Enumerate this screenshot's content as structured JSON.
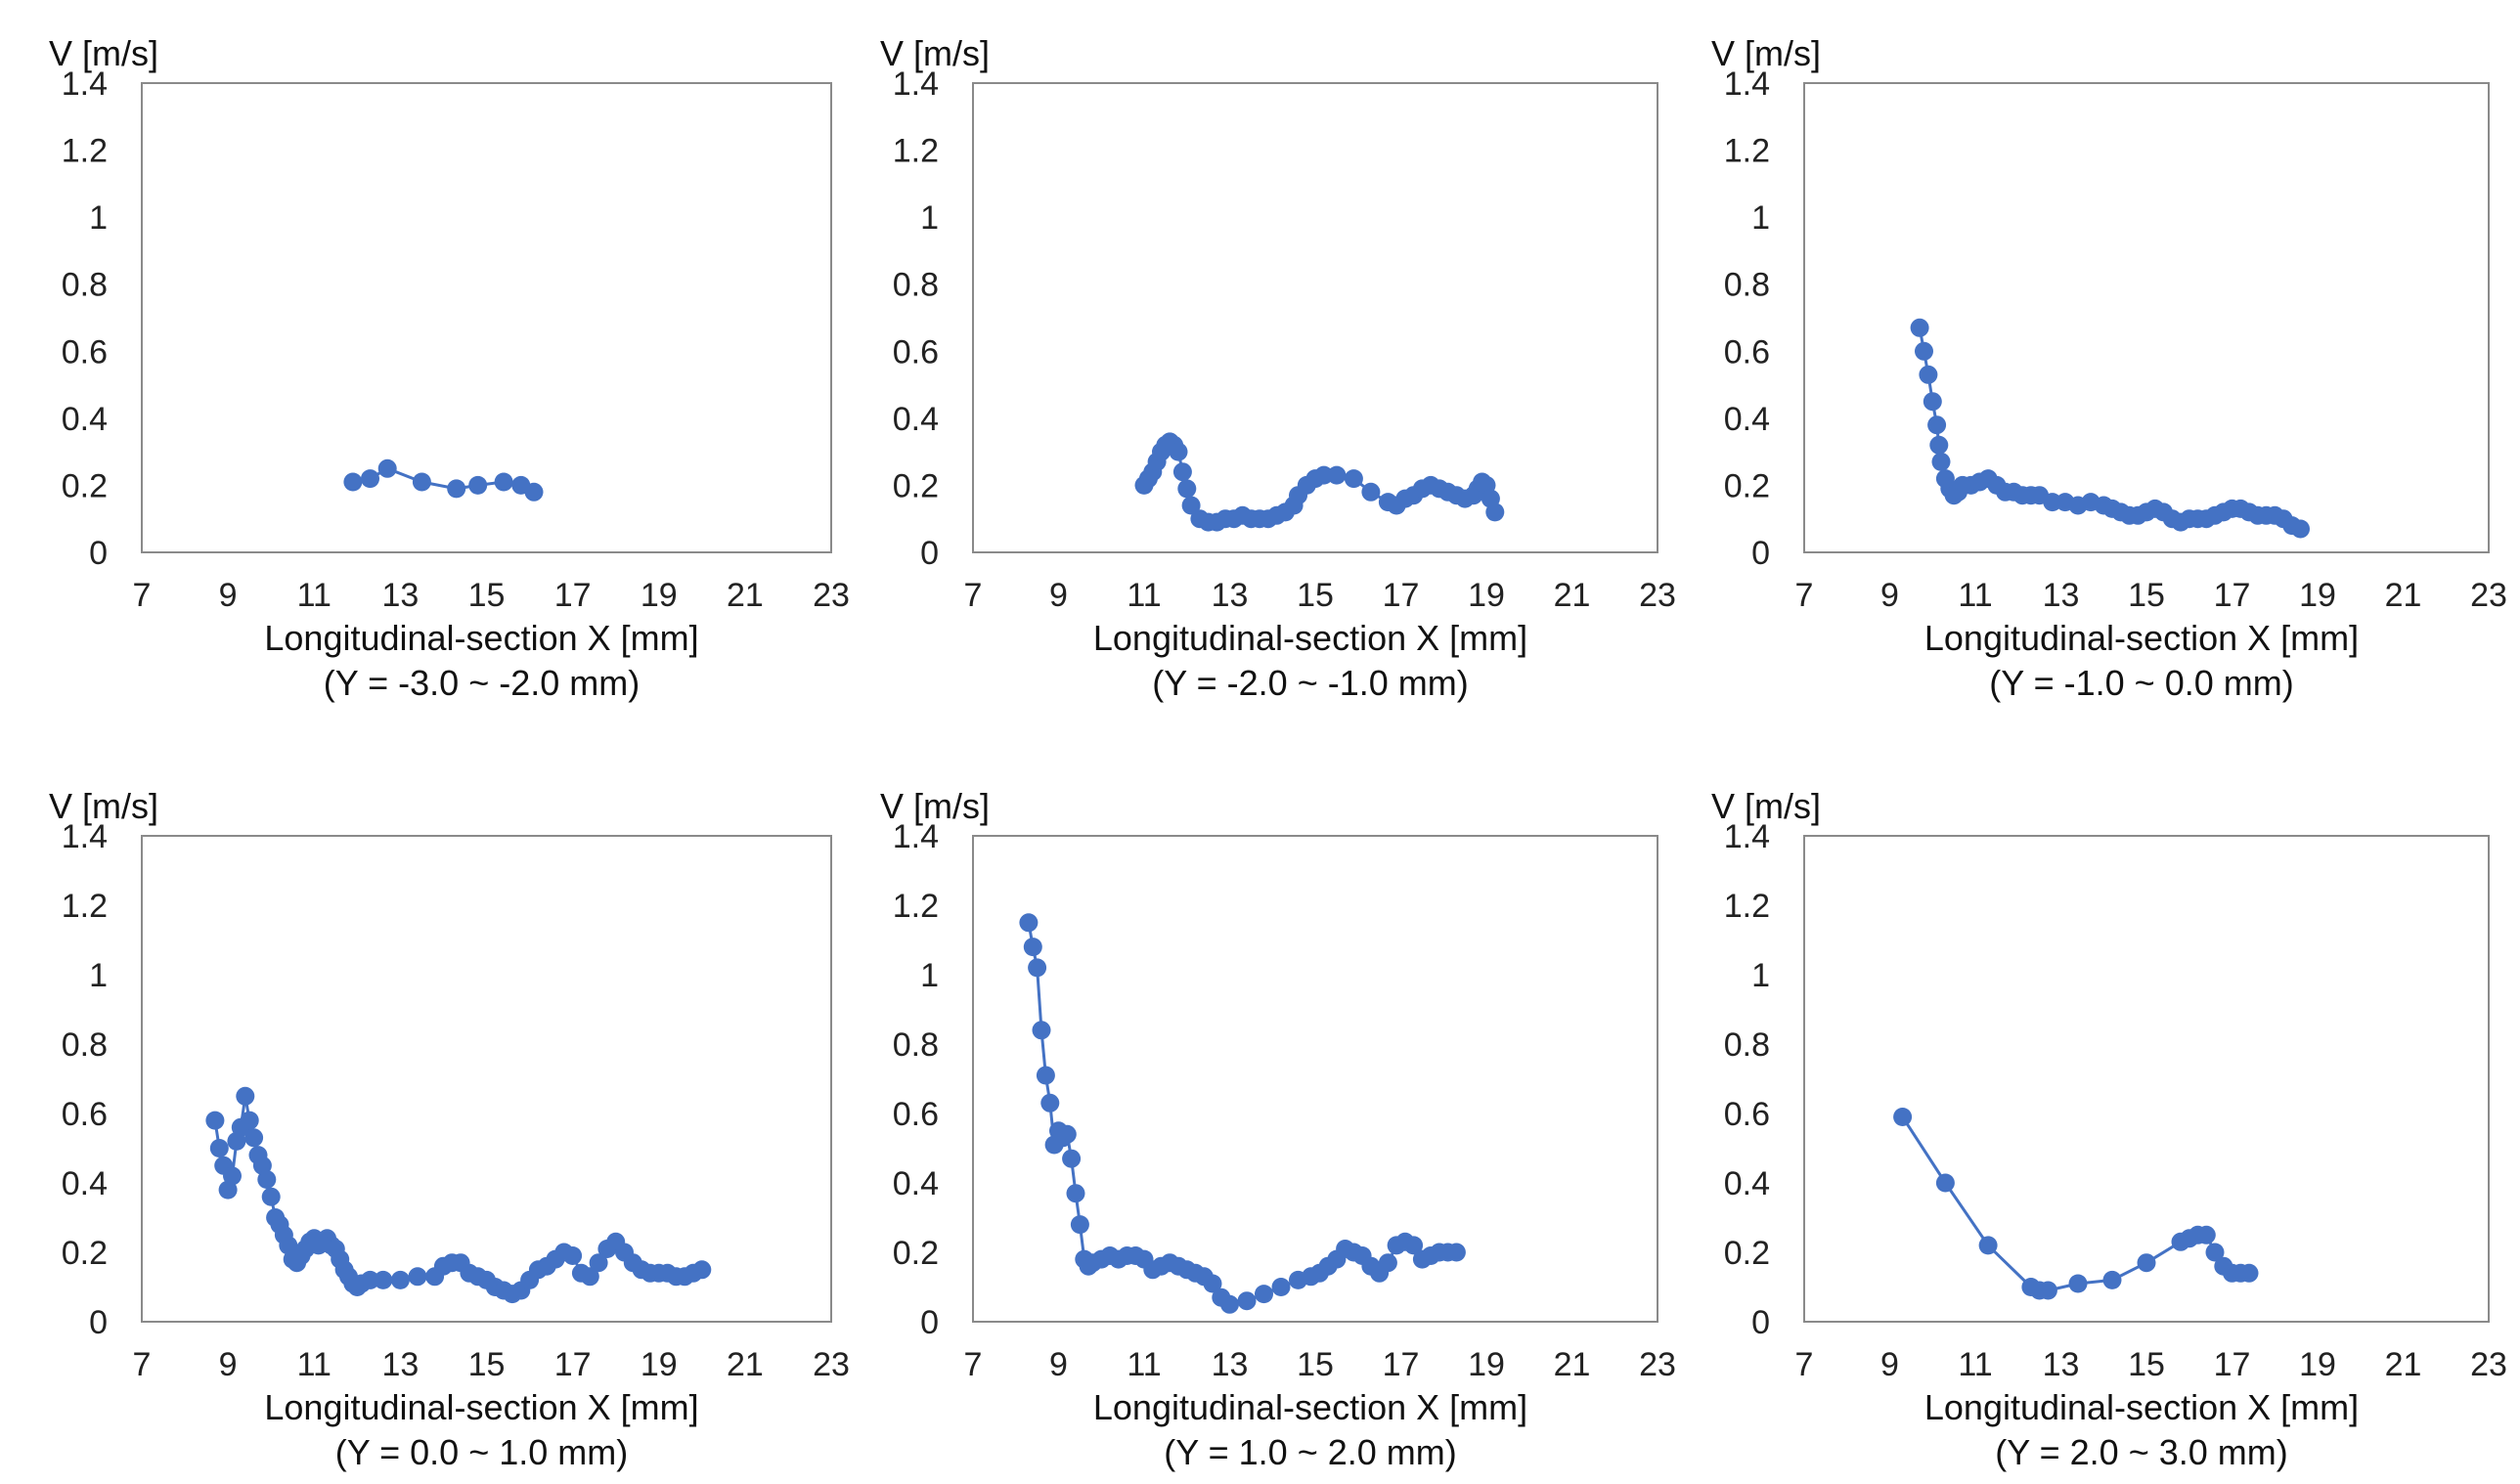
{
  "chart_data": [
    {
      "type": "line",
      "title": "",
      "xlabel": "Longitudinal-section X [mm]",
      "subtitle": "(Y = -3.0 ~ -2.0 mm)",
      "ylabel": "V [m/s]",
      "xlim": [
        7,
        23
      ],
      "ylim": [
        0,
        1.4
      ],
      "xticks": [
        "7",
        "9",
        "11",
        "13",
        "15",
        "17",
        "19",
        "21",
        "23"
      ],
      "yticks": [
        "0",
        "0.2",
        "0.4",
        "0.6",
        "0.8",
        "1",
        "1.2",
        "1.4"
      ],
      "grid": false,
      "series_color": "#4472C4",
      "series": [
        {
          "name": "V",
          "x": [
            11.9,
            12.3,
            12.7,
            13.5,
            14.3,
            14.8,
            15.4,
            15.8,
            16.1
          ],
          "y": [
            0.21,
            0.22,
            0.25,
            0.21,
            0.19,
            0.2,
            0.21,
            0.2,
            0.18
          ]
        }
      ]
    },
    {
      "type": "line",
      "title": "",
      "xlabel": "Longitudinal-section X [mm]",
      "subtitle": "(Y = -2.0 ~ -1.0 mm)",
      "ylabel": "V [m/s]",
      "xlim": [
        7,
        23
      ],
      "ylim": [
        0,
        1.4
      ],
      "xticks": [
        "7",
        "9",
        "11",
        "13",
        "15",
        "17",
        "19",
        "21",
        "23"
      ],
      "yticks": [
        "0",
        "0.2",
        "0.4",
        "0.6",
        "0.8",
        "1",
        "1.2",
        "1.4"
      ],
      "grid": false,
      "series_color": "#4472C4",
      "series": [
        {
          "name": "V",
          "x": [
            11.0,
            11.1,
            11.2,
            11.3,
            11.4,
            11.5,
            11.6,
            11.7,
            11.8,
            11.9,
            12.0,
            12.1,
            12.3,
            12.5,
            12.7,
            12.9,
            13.1,
            13.3,
            13.5,
            13.7,
            13.9,
            14.1,
            14.3,
            14.5,
            14.6,
            14.8,
            15.0,
            15.2,
            15.5,
            15.9,
            16.3,
            16.7,
            16.9,
            17.1,
            17.3,
            17.5,
            17.7,
            17.9,
            18.1,
            18.3,
            18.5,
            18.7,
            18.8,
            18.9,
            19.0,
            19.1,
            19.2
          ],
          "y": [
            0.2,
            0.22,
            0.24,
            0.27,
            0.3,
            0.32,
            0.33,
            0.32,
            0.3,
            0.24,
            0.19,
            0.14,
            0.1,
            0.09,
            0.09,
            0.1,
            0.1,
            0.11,
            0.1,
            0.1,
            0.1,
            0.11,
            0.12,
            0.14,
            0.17,
            0.2,
            0.22,
            0.23,
            0.23,
            0.22,
            0.18,
            0.15,
            0.14,
            0.16,
            0.17,
            0.19,
            0.2,
            0.19,
            0.18,
            0.17,
            0.16,
            0.17,
            0.19,
            0.21,
            0.2,
            0.16,
            0.12
          ]
        }
      ]
    },
    {
      "type": "line",
      "title": "",
      "xlabel": "Longitudinal-section X [mm]",
      "subtitle": "(Y = -1.0 ~ 0.0 mm)",
      "ylabel": "V [m/s]",
      "xlim": [
        7,
        23
      ],
      "ylim": [
        0,
        1.4
      ],
      "xticks": [
        "7",
        "9",
        "11",
        "13",
        "15",
        "17",
        "19",
        "21",
        "23"
      ],
      "yticks": [
        "0",
        "0.2",
        "0.4",
        "0.6",
        "0.8",
        "1",
        "1.2",
        "1.4"
      ],
      "grid": false,
      "series_color": "#4472C4",
      "series": [
        {
          "name": "V",
          "x": [
            9.7,
            9.8,
            9.9,
            10.0,
            10.1,
            10.15,
            10.2,
            10.3,
            10.4,
            10.5,
            10.6,
            10.7,
            10.9,
            11.1,
            11.3,
            11.5,
            11.7,
            11.9,
            12.1,
            12.3,
            12.5,
            12.8,
            13.1,
            13.4,
            13.7,
            14.0,
            14.2,
            14.4,
            14.6,
            14.8,
            15.0,
            15.2,
            15.4,
            15.6,
            15.8,
            16.0,
            16.2,
            16.4,
            16.6,
            16.8,
            17.0,
            17.2,
            17.4,
            17.6,
            17.8,
            18.0,
            18.2,
            18.4,
            18.6
          ],
          "y": [
            0.67,
            0.6,
            0.53,
            0.45,
            0.38,
            0.32,
            0.27,
            0.22,
            0.19,
            0.17,
            0.18,
            0.2,
            0.2,
            0.21,
            0.22,
            0.2,
            0.18,
            0.18,
            0.17,
            0.17,
            0.17,
            0.15,
            0.15,
            0.14,
            0.15,
            0.14,
            0.13,
            0.12,
            0.11,
            0.11,
            0.12,
            0.13,
            0.12,
            0.1,
            0.09,
            0.1,
            0.1,
            0.1,
            0.11,
            0.12,
            0.13,
            0.13,
            0.12,
            0.11,
            0.11,
            0.11,
            0.1,
            0.08,
            0.07
          ]
        }
      ]
    },
    {
      "type": "line",
      "title": "",
      "xlabel": "Longitudinal-section X [mm]",
      "subtitle": "(Y = 0.0 ~ 1.0 mm)",
      "ylabel": "V [m/s]",
      "xlim": [
        7,
        23
      ],
      "ylim": [
        0,
        1.4
      ],
      "xticks": [
        "7",
        "9",
        "11",
        "13",
        "15",
        "17",
        "19",
        "21",
        "23"
      ],
      "yticks": [
        "0",
        "0.2",
        "0.4",
        "0.6",
        "0.8",
        "1",
        "1.2",
        "1.4"
      ],
      "grid": false,
      "series_color": "#4472C4",
      "series": [
        {
          "name": "V",
          "x": [
            8.7,
            8.8,
            8.9,
            9.0,
            9.1,
            9.2,
            9.3,
            9.4,
            9.5,
            9.6,
            9.7,
            9.8,
            9.9,
            10.0,
            10.1,
            10.2,
            10.3,
            10.4,
            10.5,
            10.6,
            10.7,
            10.8,
            10.9,
            11.0,
            11.1,
            11.2,
            11.3,
            11.4,
            11.5,
            11.6,
            11.7,
            11.8,
            11.9,
            12.0,
            12.1,
            12.3,
            12.6,
            13.0,
            13.4,
            13.8,
            14.0,
            14.2,
            14.4,
            14.6,
            14.8,
            15.0,
            15.2,
            15.4,
            15.6,
            15.8,
            16.0,
            16.2,
            16.4,
            16.6,
            16.8,
            17.0,
            17.2,
            17.4,
            17.6,
            17.8,
            18.0,
            18.2,
            18.4,
            18.6,
            18.8,
            19.0,
            19.2,
            19.4,
            19.6,
            19.8,
            20.0
          ],
          "y": [
            0.58,
            0.5,
            0.45,
            0.38,
            0.42,
            0.52,
            0.56,
            0.65,
            0.58,
            0.53,
            0.48,
            0.45,
            0.41,
            0.36,
            0.3,
            0.28,
            0.25,
            0.22,
            0.18,
            0.17,
            0.19,
            0.21,
            0.23,
            0.24,
            0.22,
            0.23,
            0.24,
            0.22,
            0.21,
            0.18,
            0.15,
            0.13,
            0.11,
            0.1,
            0.11,
            0.12,
            0.12,
            0.12,
            0.13,
            0.13,
            0.16,
            0.17,
            0.17,
            0.14,
            0.13,
            0.12,
            0.1,
            0.09,
            0.08,
            0.09,
            0.12,
            0.15,
            0.16,
            0.18,
            0.2,
            0.19,
            0.14,
            0.13,
            0.17,
            0.21,
            0.23,
            0.2,
            0.17,
            0.15,
            0.14,
            0.14,
            0.14,
            0.13,
            0.13,
            0.14,
            0.15
          ]
        }
      ]
    },
    {
      "type": "line",
      "title": "",
      "xlabel": "Longitudinal-section X [mm]",
      "subtitle": "(Y = 1.0 ~ 2.0 mm)",
      "ylabel": "V [m/s]",
      "xlim": [
        7,
        23
      ],
      "ylim": [
        0,
        1.4
      ],
      "xticks": [
        "7",
        "9",
        "11",
        "13",
        "15",
        "17",
        "19",
        "21",
        "23"
      ],
      "yticks": [
        "0",
        "0.2",
        "0.4",
        "0.6",
        "0.8",
        "1",
        "1.2",
        "1.4"
      ],
      "grid": false,
      "series_color": "#4472C4",
      "series": [
        {
          "name": "V",
          "x": [
            8.3,
            8.4,
            8.5,
            8.6,
            8.7,
            8.8,
            8.9,
            9.0,
            9.1,
            9.2,
            9.3,
            9.4,
            9.5,
            9.6,
            9.7,
            9.8,
            10.0,
            10.2,
            10.4,
            10.6,
            10.8,
            11.0,
            11.2,
            11.4,
            11.6,
            11.8,
            12.0,
            12.2,
            12.4,
            12.6,
            12.8,
            13.0,
            13.4,
            13.8,
            14.2,
            14.6,
            14.9,
            15.1,
            15.3,
            15.5,
            15.7,
            15.9,
            16.1,
            16.3,
            16.5,
            16.7,
            16.9,
            17.1,
            17.3,
            17.5,
            17.7,
            17.9,
            18.1,
            18.3
          ],
          "y": [
            1.15,
            1.08,
            1.02,
            0.84,
            0.71,
            0.63,
            0.51,
            0.55,
            0.53,
            0.54,
            0.47,
            0.37,
            0.28,
            0.18,
            0.16,
            0.17,
            0.18,
            0.19,
            0.18,
            0.19,
            0.19,
            0.18,
            0.15,
            0.16,
            0.17,
            0.16,
            0.15,
            0.14,
            0.13,
            0.11,
            0.07,
            0.05,
            0.06,
            0.08,
            0.1,
            0.12,
            0.13,
            0.14,
            0.16,
            0.18,
            0.21,
            0.2,
            0.19,
            0.16,
            0.14,
            0.17,
            0.22,
            0.23,
            0.22,
            0.18,
            0.19,
            0.2,
            0.2,
            0.2
          ]
        }
      ]
    },
    {
      "type": "line",
      "title": "",
      "xlabel": "Longitudinal-section X [mm]",
      "subtitle": "(Y = 2.0 ~ 3.0 mm)",
      "ylabel": "V [m/s]",
      "xlim": [
        7,
        23
      ],
      "ylim": [
        0,
        1.4
      ],
      "xticks": [
        "7",
        "9",
        "11",
        "13",
        "15",
        "17",
        "19",
        "21",
        "23"
      ],
      "yticks": [
        "0",
        "0.2",
        "0.4",
        "0.6",
        "0.8",
        "1",
        "1.2",
        "1.4"
      ],
      "grid": false,
      "series_color": "#4472C4",
      "series": [
        {
          "name": "V",
          "x": [
            9.3,
            10.3,
            11.3,
            12.3,
            12.5,
            12.7,
            13.4,
            14.2,
            15.0,
            15.8,
            16.0,
            16.2,
            16.4,
            16.6,
            16.8,
            17.0,
            17.2,
            17.4
          ],
          "y": [
            0.59,
            0.4,
            0.22,
            0.1,
            0.09,
            0.09,
            0.11,
            0.12,
            0.17,
            0.23,
            0.24,
            0.25,
            0.25,
            0.2,
            0.16,
            0.14,
            0.14,
            0.14
          ]
        }
      ]
    }
  ]
}
